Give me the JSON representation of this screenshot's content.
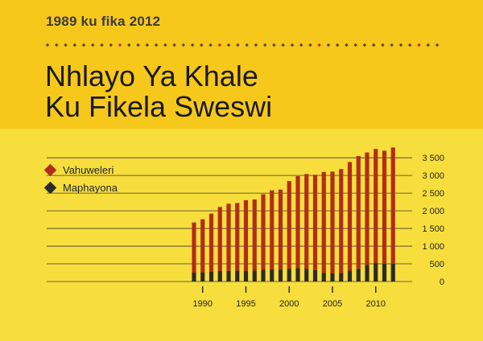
{
  "header": {
    "date_range": "1989 ku fika 2012",
    "title_line1": "Nhlayo Ya Khale",
    "title_line2": "Ku Fikela Sweswi"
  },
  "colors": {
    "background_top": "#F6C81B",
    "background_bottom": "#F8DE3C",
    "series_vahuweleri": "#B22D1B",
    "series_maphayona": "#2B2B2B",
    "rule_dots": "#5A4A2A",
    "rule_accent": "#C0392B"
  },
  "legend": [
    {
      "label": "Vahuweleri",
      "color": "#B22D1B"
    },
    {
      "label": "Maphayona",
      "color": "#2B2B2B"
    }
  ],
  "chart_data": {
    "type": "bar",
    "stacked": true,
    "categories": [
      "1989",
      "1990",
      "1991",
      "1992",
      "1993",
      "1994",
      "1995",
      "1996",
      "1997",
      "1998",
      "1999",
      "2000",
      "2001",
      "2002",
      "2003",
      "2004",
      "2005",
      "2006",
      "2007",
      "2008",
      "2009",
      "2010",
      "2011",
      "2012"
    ],
    "x_tick_labels": [
      "1990",
      "1995",
      "2000",
      "2005",
      "2010"
    ],
    "y_tick_labels": [
      "0",
      "500",
      "1 000",
      "1 500",
      "2 000",
      "2 500",
      "3 000",
      "3 500"
    ],
    "ylim": [
      0,
      3800
    ],
    "grid": true,
    "legend_position": "left",
    "series": [
      {
        "name": "Maphayona",
        "color": "#2B2B2B",
        "values": [
          250,
          260,
          280,
          300,
          300,
          310,
          300,
          310,
          330,
          340,
          330,
          360,
          380,
          360,
          320,
          240,
          230,
          240,
          310,
          350,
          470,
          520,
          500,
          500
        ]
      },
      {
        "name": "Vahuweleri",
        "color": "#B22D1B",
        "values": [
          1420,
          1500,
          1640,
          1810,
          1900,
          1910,
          2000,
          2010,
          2140,
          2240,
          2270,
          2480,
          2600,
          2680,
          2700,
          2860,
          2880,
          2940,
          3070,
          3200,
          3180,
          3230,
          3200,
          3290
        ]
      }
    ]
  }
}
